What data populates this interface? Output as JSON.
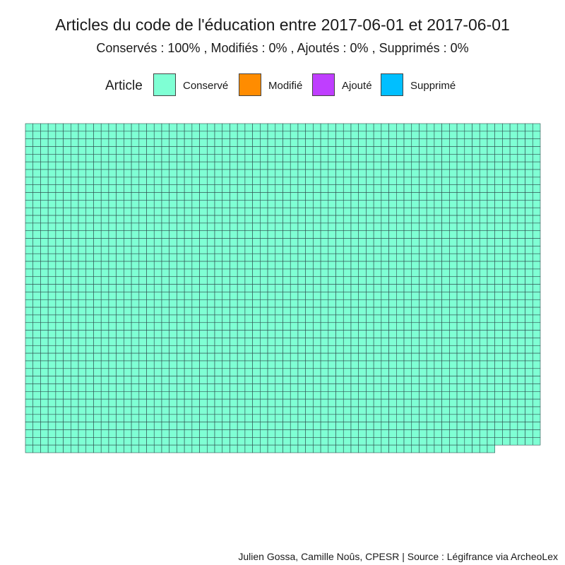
{
  "chart_data": {
    "type": "waffle",
    "title": "Articles du code de l'éducation entre 2017-06-01 et 2017-06-01",
    "subtitle": "Conservés :  100% , Modifiés :  0% , Ajoutés :  0% , Supprimés :  0%",
    "legend": {
      "title": "Article",
      "position": "top",
      "items": [
        {
          "label": "Conservé",
          "color": "#7fffd4"
        },
        {
          "label": "Modifié",
          "color": "#ff8c00"
        },
        {
          "label": "Ajouté",
          "color": "#bf3eff"
        },
        {
          "label": "Supprimé",
          "color": "#00bfff"
        }
      ]
    },
    "grid": {
      "columns": 68,
      "rows": 43,
      "last_row_cells": 62
    },
    "categories": [
      "Conservé",
      "Modifié",
      "Ajouté",
      "Supprimé"
    ],
    "values": [
      2918,
      0,
      0,
      0
    ],
    "caption": "Julien Gossa, Camille Noûs, CPESR  |  Source : Légifrance via ArcheoLex"
  }
}
